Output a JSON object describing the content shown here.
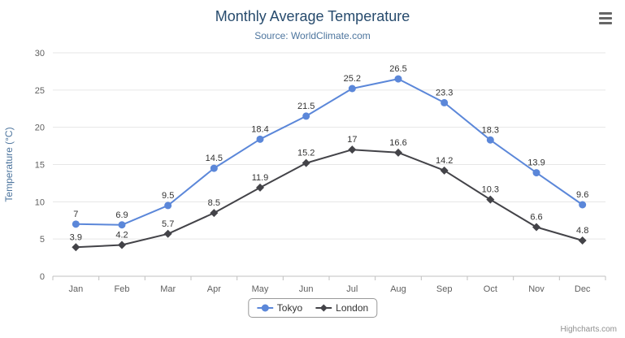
{
  "chart": {
    "credit": "Highcharts.com",
    "menu_icon": "hamburger-menu"
  },
  "chart_data": {
    "type": "line",
    "title": "Monthly Average Temperature",
    "subtitle": "Source: WorldClimate.com",
    "categories": [
      "Jan",
      "Feb",
      "Mar",
      "Apr",
      "May",
      "Jun",
      "Jul",
      "Aug",
      "Sep",
      "Oct",
      "Nov",
      "Dec"
    ],
    "series": [
      {
        "name": "Tokyo",
        "color": "#5b87d9",
        "marker": "circle",
        "values": [
          7,
          6.9,
          9.5,
          14.5,
          18.4,
          21.5,
          25.2,
          26.5,
          23.3,
          18.3,
          13.9,
          9.6
        ]
      },
      {
        "name": "London",
        "color": "#434348",
        "marker": "diamond",
        "values": [
          3.9,
          4.2,
          5.7,
          8.5,
          11.9,
          15.2,
          17,
          16.6,
          14.2,
          10.3,
          6.6,
          4.8
        ]
      }
    ],
    "xlabel": "",
    "ylabel": "Temperature (°C)",
    "ylim": [
      0,
      30
    ],
    "ytick_step": 5,
    "grid": true,
    "legend_position": "bottom"
  }
}
